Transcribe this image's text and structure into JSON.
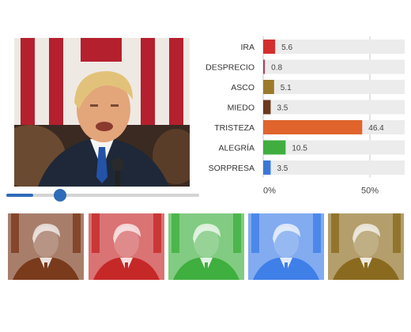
{
  "chart_data": {
    "type": "bar",
    "orientation": "horizontal",
    "categories": [
      "IRA",
      "DESPRECIO",
      "ASCO",
      "MIEDO",
      "TRISTEZA",
      "ALEGRÍA",
      "SORPRESA"
    ],
    "values": [
      5.6,
      0.8,
      5.1,
      3.5,
      46.4,
      10.5,
      3.5
    ],
    "value_labels": [
      "5.6",
      "0.8",
      "5.1",
      "3.5",
      "46.4",
      "10.5",
      "3.5"
    ],
    "colors": [
      "#d32f2f",
      "#a3456b",
      "#9c7a2b",
      "#6b3a1f",
      "#e0642c",
      "#3fae3f",
      "#3a78d8"
    ],
    "track_color": "#ececec",
    "xlim": [
      0,
      100
    ],
    "xticks": [
      0,
      50
    ],
    "xtick_labels": [
      "0%",
      "50%"
    ],
    "grid": true
  },
  "video": {
    "progress": 0.14
  },
  "thumbnails": [
    {
      "emotion_color": "#7a3a1c"
    },
    {
      "emotion_color": "#c62828"
    },
    {
      "emotion_color": "#3faf3f"
    },
    {
      "emotion_color": "#3f7fe8"
    },
    {
      "emotion_color": "#8a6a1e"
    }
  ]
}
